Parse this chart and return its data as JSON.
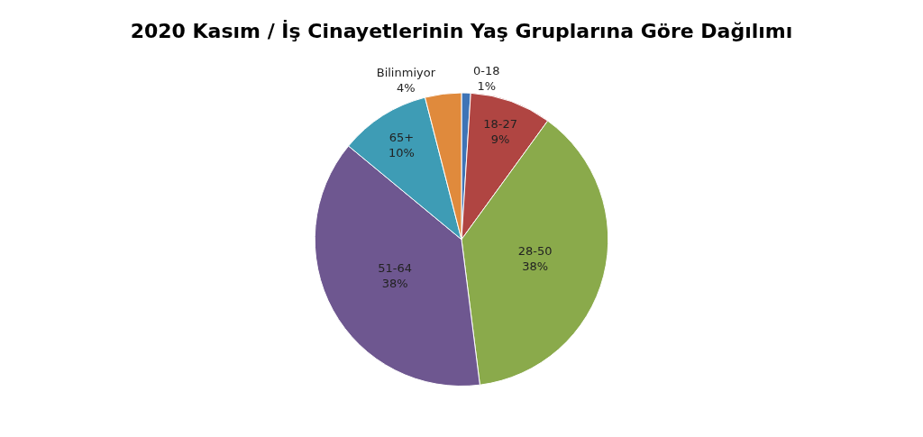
{
  "chart_data": {
    "type": "pie",
    "title": "2020 Kasım / İş Cinayetlerinin Yaş Gruplarına Göre Dağılımı",
    "categories": [
      "0-18",
      "18-27",
      "28-50",
      "51-64",
      "65+",
      "Bilinmiyor"
    ],
    "values": [
      1,
      9,
      38,
      38,
      10,
      4
    ],
    "value_labels": [
      "1%",
      "9%",
      "38%",
      "38%",
      "10%",
      "4%"
    ],
    "colors": [
      "#3f74b6",
      "#b04542",
      "#8aaa4b",
      "#6e5790",
      "#3e9cb5",
      "#e08a3c"
    ],
    "legend": false
  }
}
